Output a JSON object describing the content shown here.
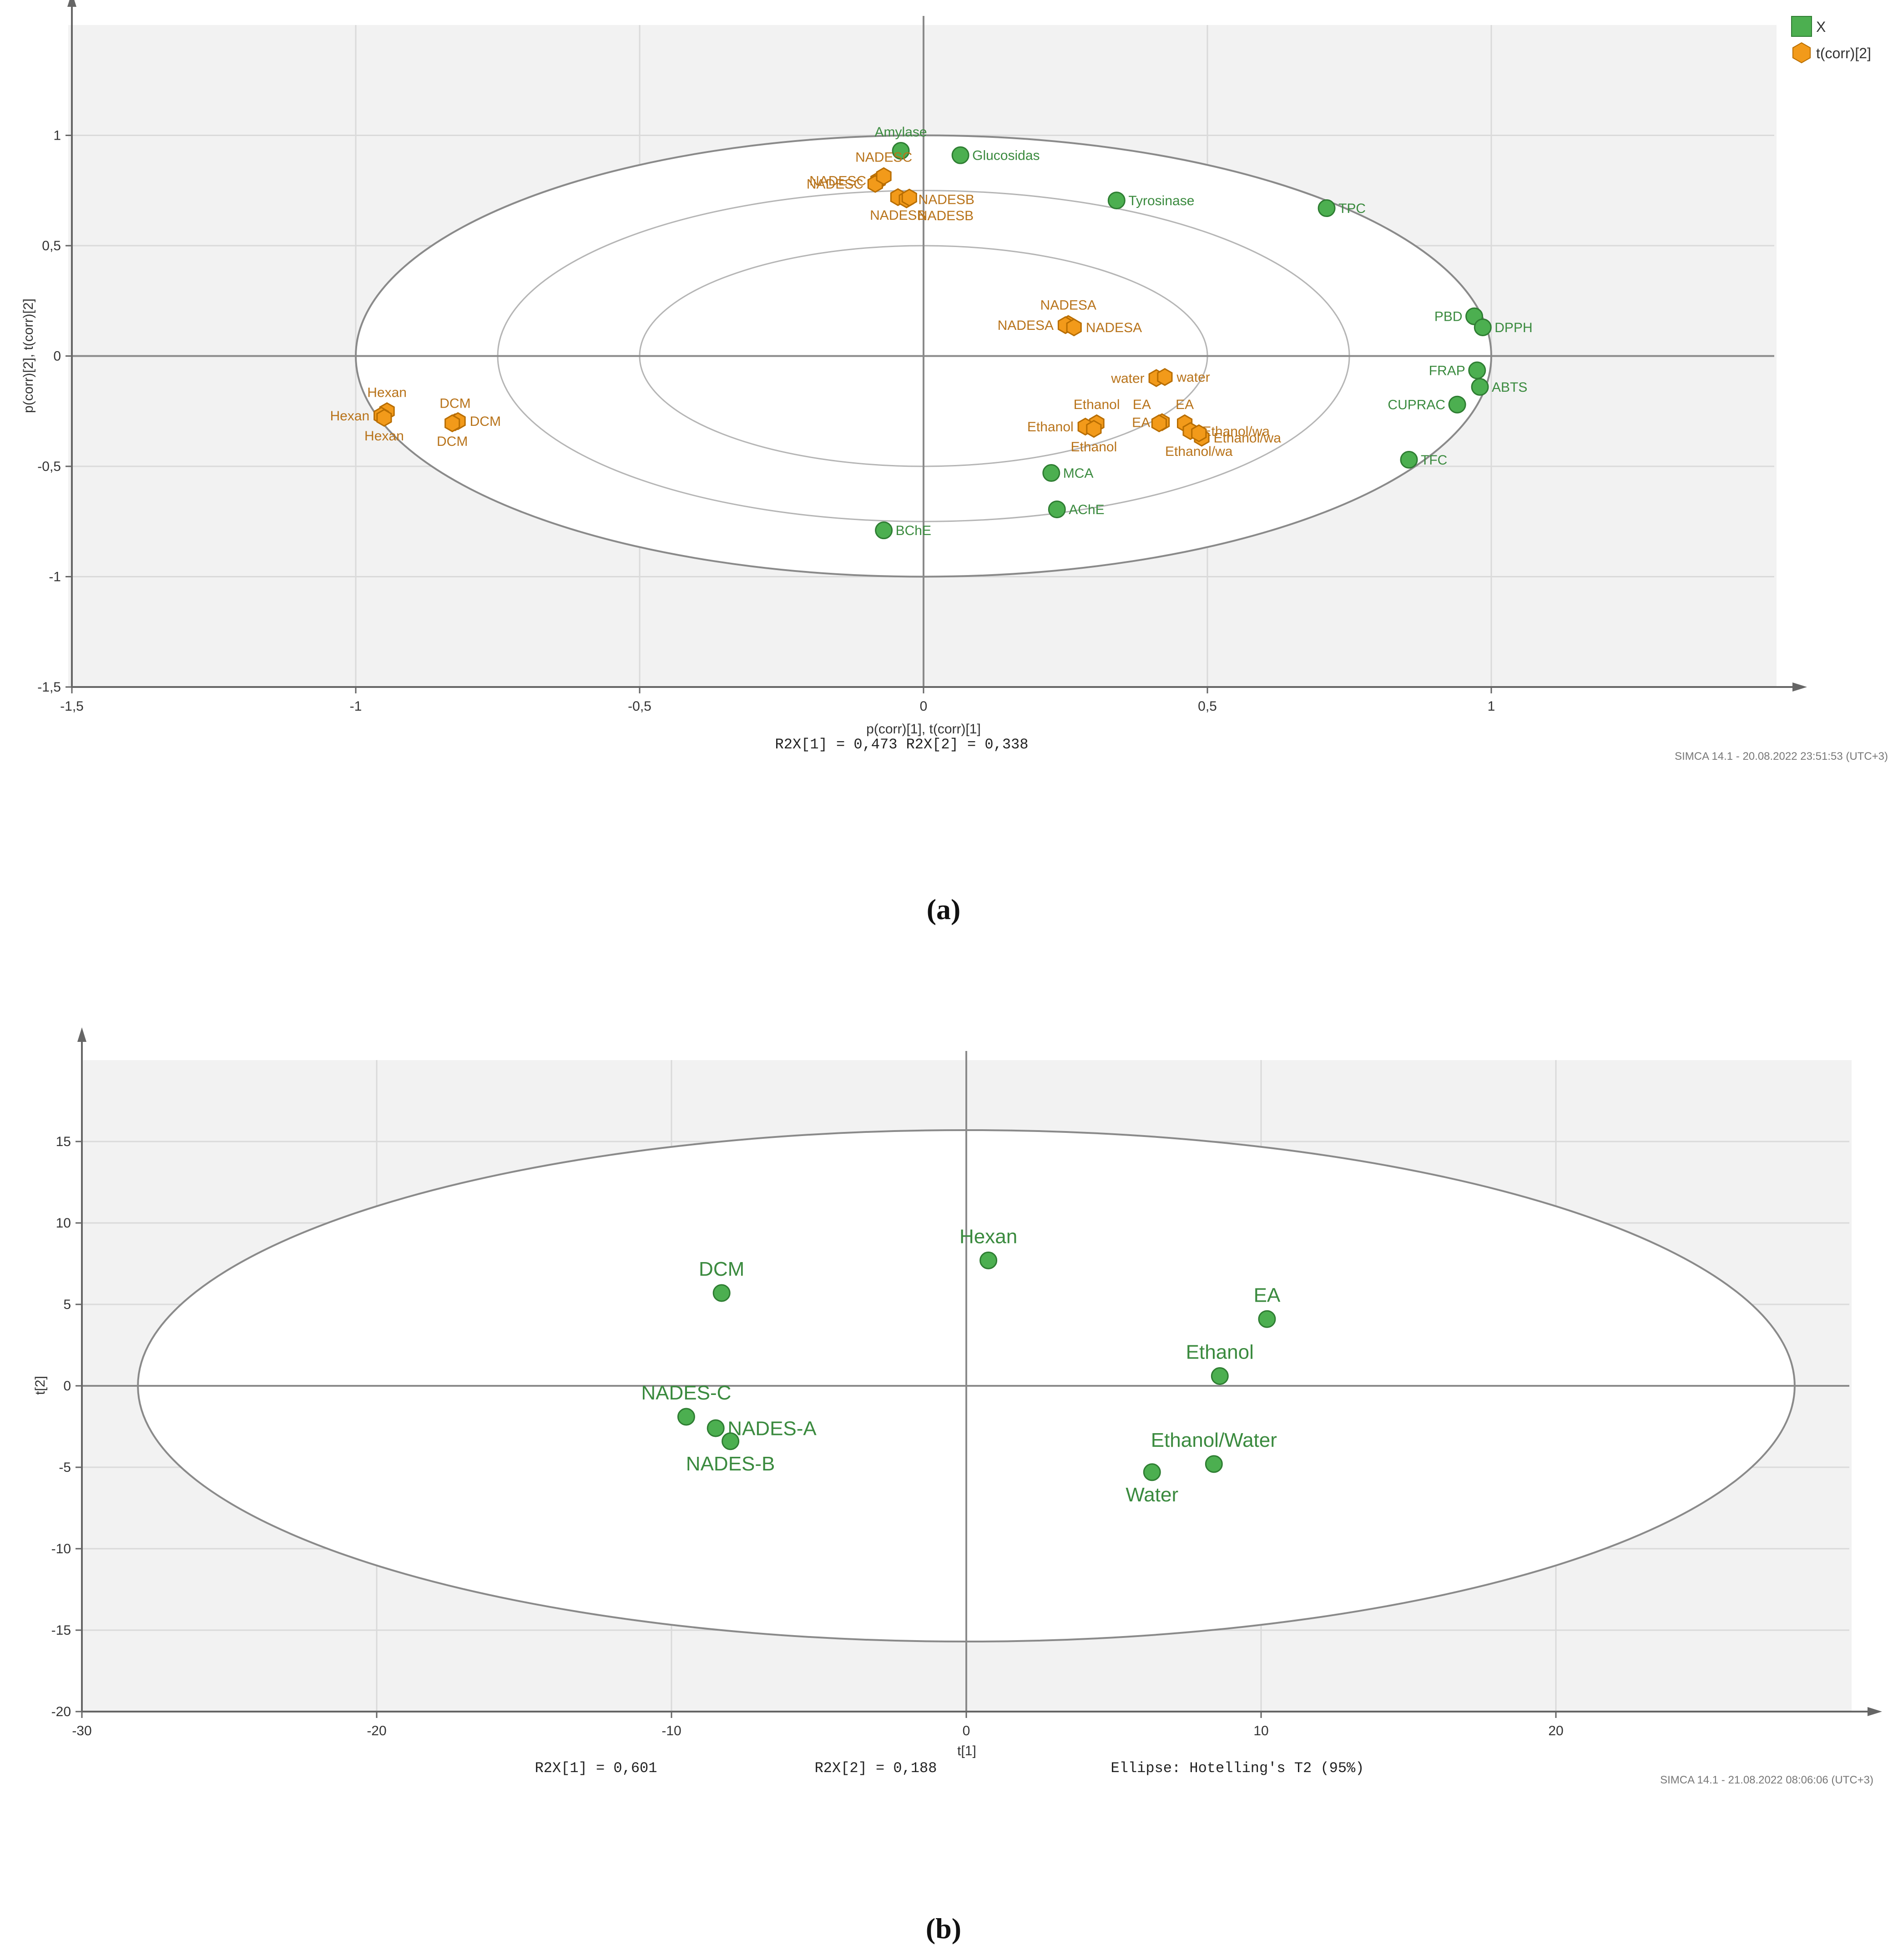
{
  "chart_data": [
    {
      "panel": "(a)",
      "type": "scatter",
      "xlabel": "p(corr)[1], t(corr)[1]",
      "ylabel": "p(corr)[2], t(corr)[2]",
      "xlim": [
        -1.5,
        1.5
      ],
      "ylim": [
        -1.5,
        1.5
      ],
      "xticks": [
        -1.5,
        -1,
        -0.5,
        0,
        0.5,
        1
      ],
      "yticks": [
        -1.5,
        -1,
        -0.5,
        0,
        0.5,
        1
      ],
      "tick_format": "comma",
      "grid": true,
      "stats_text": "R2X[1] = 0,473 R2X[2] = 0,338",
      "footer": "SIMCA 14.1 - 20.08.2022 23:51:53 (UTC+3)",
      "legend": [
        {
          "label": "X",
          "marker": "square",
          "color": "#4caf50"
        },
        {
          "label": "t(corr)[2]",
          "marker": "hexagon",
          "color": "#f29a1a"
        }
      ],
      "ellipses": [
        {
          "rx": 1.0,
          "ry": 1.0
        },
        {
          "rx": 0.75,
          "ry": 0.75
        },
        {
          "rx": 0.5,
          "ry": 0.5
        }
      ],
      "series": [
        {
          "name": "X",
          "color": "#4caf50",
          "points": [
            {
              "label": "Amylase",
              "x": -0.04,
              "y": 0.93,
              "pos": "above"
            },
            {
              "label": "Glucosidas",
              "x": 0.065,
              "y": 0.91,
              "pos": "right"
            },
            {
              "label": "Tyrosinase",
              "x": 0.34,
              "y": 0.705,
              "pos": "right"
            },
            {
              "label": "TPC",
              "x": 0.71,
              "y": 0.67,
              "pos": "right"
            },
            {
              "label": "PBD",
              "x": 0.97,
              "y": 0.18,
              "pos": "left"
            },
            {
              "label": "DPPH",
              "x": 0.985,
              "y": 0.13,
              "pos": "right"
            },
            {
              "label": "FRAP",
              "x": 0.975,
              "y": -0.065,
              "pos": "left"
            },
            {
              "label": "ABTS",
              "x": 0.98,
              "y": -0.14,
              "pos": "right"
            },
            {
              "label": "CUPRAC",
              "x": 0.94,
              "y": -0.22,
              "pos": "left"
            },
            {
              "label": "TFC",
              "x": 0.855,
              "y": -0.47,
              "pos": "right"
            },
            {
              "label": "MCA",
              "x": 0.225,
              "y": -0.53,
              "pos": "right"
            },
            {
              "label": "AChE",
              "x": 0.235,
              "y": -0.695,
              "pos": "right"
            },
            {
              "label": "BChE",
              "x": -0.07,
              "y": -0.79,
              "pos": "right"
            }
          ]
        },
        {
          "name": "t(corr)[2]",
          "color": "#f29a1a",
          "points": [
            {
              "label": "NADESC",
              "x": -0.08,
              "y": 0.795,
              "pos": "left"
            },
            {
              "label": "NADESC",
              "x": -0.085,
              "y": 0.78,
              "pos": "left"
            },
            {
              "label": "NADESC",
              "x": -0.07,
              "y": 0.815,
              "pos": "above"
            },
            {
              "label": "NADESB",
              "x": -0.045,
              "y": 0.72,
              "pos": "below"
            },
            {
              "label": "NADESB",
              "x": -0.03,
              "y": 0.71,
              "pos": "right"
            },
            {
              "label": "NADESB",
              "x": -0.025,
              "y": 0.718,
              "pos": "belowright"
            },
            {
              "label": "NADESA",
              "x": 0.255,
              "y": 0.145,
              "pos": "above"
            },
            {
              "label": "NADESA",
              "x": 0.25,
              "y": 0.14,
              "pos": "left"
            },
            {
              "label": "NADESA",
              "x": 0.265,
              "y": 0.13,
              "pos": "right"
            },
            {
              "label": "water",
              "x": 0.41,
              "y": -0.1,
              "pos": "left"
            },
            {
              "label": "water",
              "x": 0.425,
              "y": -0.095,
              "pos": "right"
            },
            {
              "label": "Ethanol",
              "x": 0.305,
              "y": -0.305,
              "pos": "above"
            },
            {
              "label": "Ethanol",
              "x": 0.285,
              "y": -0.32,
              "pos": "left"
            },
            {
              "label": "Ethanol",
              "x": 0.3,
              "y": -0.33,
              "pos": "below"
            },
            {
              "label": "EA",
              "x": 0.42,
              "y": -0.3,
              "pos": "left"
            },
            {
              "label": "EA",
              "x": 0.415,
              "y": -0.305,
              "pos": "aboveleft"
            },
            {
              "label": "EA",
              "x": 0.46,
              "y": -0.305,
              "pos": "above"
            },
            {
              "label": "Ethanol/wa",
              "x": 0.47,
              "y": -0.34,
              "pos": "right"
            },
            {
              "label": "Ethanol/wa",
              "x": 0.49,
              "y": -0.37,
              "pos": "right"
            },
            {
              "label": "Ethanol/wa",
              "x": 0.485,
              "y": -0.35,
              "pos": "below"
            },
            {
              "label": "Hexan",
              "x": -0.945,
              "y": -0.25,
              "pos": "above"
            },
            {
              "label": "Hexan",
              "x": -0.955,
              "y": -0.27,
              "pos": "left"
            },
            {
              "label": "Hexan",
              "x": -0.95,
              "y": -0.28,
              "pos": "below"
            },
            {
              "label": "DCM",
              "x": -0.825,
              "y": -0.3,
              "pos": "above"
            },
            {
              "label": "DCM",
              "x": -0.82,
              "y": -0.295,
              "pos": "right"
            },
            {
              "label": "DCM",
              "x": -0.83,
              "y": -0.305,
              "pos": "below"
            }
          ]
        }
      ]
    },
    {
      "panel": "(b)",
      "type": "scatter",
      "xlabel": "t[1]",
      "ylabel": "t[2]",
      "xlim": [
        -30,
        30
      ],
      "ylim": [
        -20,
        20
      ],
      "xticks": [
        -30,
        -20,
        -10,
        0,
        10,
        20
      ],
      "yticks": [
        -20,
        -15,
        -10,
        -5,
        0,
        5,
        10,
        15
      ],
      "grid": true,
      "stats_r2x1": "R2X[1] = 0,601",
      "stats_r2x2": "R2X[2] = 0,188",
      "ellipse_text": "Ellipse: Hotelling's T2 (95%)",
      "footer": "SIMCA 14.1 - 21.08.2022 08:06:06 (UTC+3)",
      "ellipse": {
        "rx": 28.1,
        "ry": 15.7
      },
      "series": [
        {
          "name": "scores",
          "color": "#4caf50",
          "points": [
            {
              "label": "Hexan",
              "x": 0.75,
              "y": 7.7,
              "pos": "above"
            },
            {
              "label": "DCM",
              "x": -8.3,
              "y": 5.7,
              "pos": "above"
            },
            {
              "label": "EA",
              "x": 10.2,
              "y": 4.1,
              "pos": "above"
            },
            {
              "label": "Ethanol",
              "x": 8.6,
              "y": 0.6,
              "pos": "above"
            },
            {
              "label": "NADES-C",
              "x": -9.5,
              "y": -1.9,
              "pos": "above"
            },
            {
              "label": "NADES-A",
              "x": -8.5,
              "y": -2.6,
              "pos": "right"
            },
            {
              "label": "NADES-B",
              "x": -8.0,
              "y": -3.4,
              "pos": "below"
            },
            {
              "label": "Ethanol/Water",
              "x": 8.4,
              "y": -4.8,
              "pos": "above"
            },
            {
              "label": "Water",
              "x": 6.3,
              "y": -5.3,
              "pos": "below"
            }
          ]
        }
      ]
    }
  ],
  "captions": {
    "a": "(a)",
    "b": "(b)"
  }
}
